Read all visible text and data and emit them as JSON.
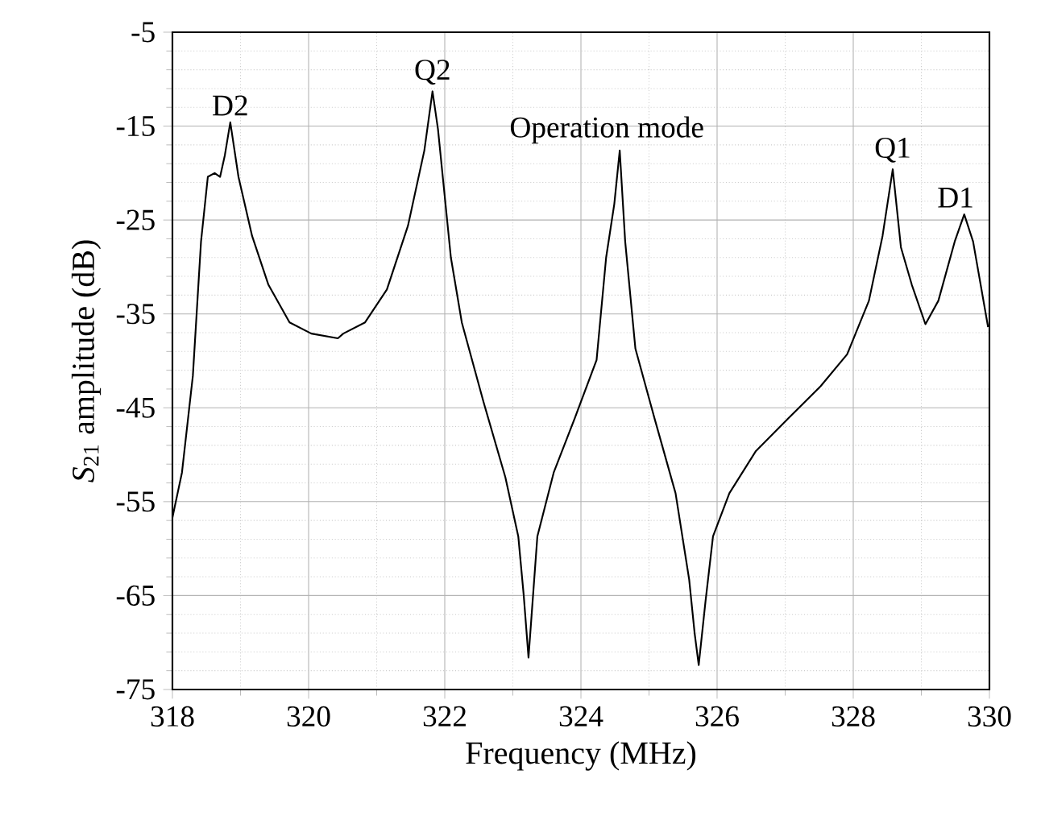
{
  "chart_data": {
    "type": "line",
    "xlabel": "Frequency (MHz)",
    "ylabel": "*S*$_{21}$ amplitude (dB)",
    "xlim": [
      318,
      330
    ],
    "xticks": [
      318,
      320,
      322,
      324,
      326,
      328,
      330
    ],
    "ylim": [
      -75,
      -5
    ],
    "yticks": [
      -75,
      -65,
      -55,
      -45,
      -35,
      -25,
      -15,
      -5
    ],
    "grid": true,
    "line_style": "solid",
    "marker": "none",
    "annotations": [
      {
        "text": "D2",
        "x": 318.85,
        "y": -14.6
      },
      {
        "text": "Q2",
        "x": 321.82,
        "y": -11.3
      },
      {
        "text": "Operation mode",
        "x": 324.57,
        "y": -17.6
      },
      {
        "text": "Q1",
        "x": 328.58,
        "y": -19.6
      },
      {
        "text": "D1",
        "x": 329.63,
        "y": -24.4
      }
    ],
    "series": [
      {
        "color": "#000000",
        "x": [
          318.0,
          318.14,
          318.3,
          318.42,
          318.52,
          318.62,
          318.7,
          318.77,
          318.85,
          318.97,
          319.17,
          319.41,
          319.72,
          320.04,
          320.43,
          320.51,
          320.83,
          321.15,
          321.46,
          321.7,
          321.82,
          321.9,
          322.09,
          322.25,
          322.57,
          322.89,
          323.08,
          323.16,
          323.23,
          323.36,
          323.6,
          323.91,
          324.23,
          324.37,
          324.49,
          324.57,
          324.65,
          324.8,
          325.08,
          325.39,
          325.59,
          325.67,
          325.73,
          325.83,
          325.94,
          326.18,
          326.57,
          327.05,
          327.52,
          327.91,
          328.23,
          328.43,
          328.58,
          328.7,
          328.86,
          329.06,
          329.25,
          329.49,
          329.63,
          329.76,
          329.98
        ],
        "values": [
          -56.7,
          -51.9,
          -41.6,
          -27.3,
          -20.4,
          -20.0,
          -20.4,
          -18.1,
          -14.6,
          -20.4,
          -26.7,
          -31.9,
          -35.9,
          -37.1,
          -37.6,
          -37.1,
          -35.9,
          -32.4,
          -25.6,
          -17.6,
          -11.3,
          -15.3,
          -29.0,
          -35.9,
          -44.4,
          -52.4,
          -58.7,
          -65.0,
          -71.6,
          -58.7,
          -51.9,
          -46.1,
          -39.9,
          -29.0,
          -23.3,
          -17.6,
          -27.3,
          -38.7,
          -46.1,
          -54.1,
          -63.3,
          -69.0,
          -72.4,
          -65.6,
          -58.7,
          -54.1,
          -49.6,
          -46.1,
          -42.7,
          -39.3,
          -33.6,
          -26.7,
          -19.6,
          -27.9,
          -31.9,
          -36.1,
          -33.6,
          -27.3,
          -24.4,
          -27.3,
          -36.4
        ]
      }
    ]
  }
}
